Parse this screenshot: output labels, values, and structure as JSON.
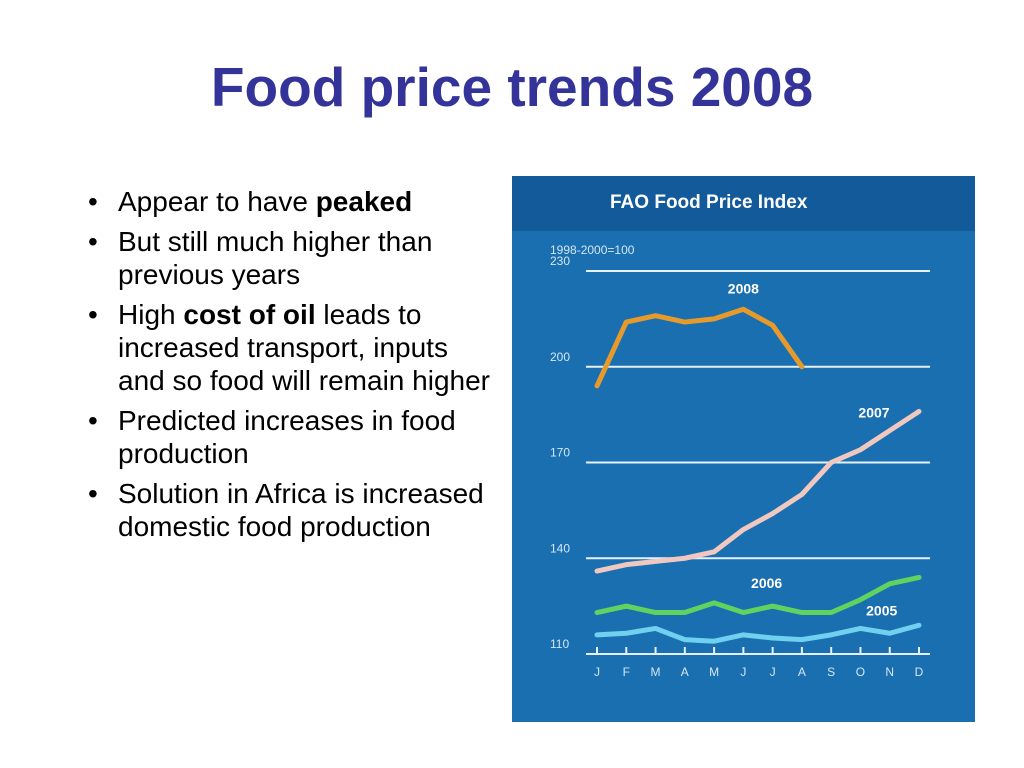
{
  "slide": {
    "title": "Food price trends 2008"
  },
  "bullets": [
    {
      "before": "Appear to have ",
      "bold": "peaked",
      "after": ""
    },
    {
      "before": "But still much higher than previous years",
      "bold": "",
      "after": ""
    },
    {
      "before": "High ",
      "bold": "cost of oil",
      "after": " leads to increased transport, inputs and so food will remain higher"
    },
    {
      "before": "Predicted increases in food production",
      "bold": "",
      "after": ""
    },
    {
      "before": "Solution in Africa is increased domestic food production",
      "bold": "",
      "after": ""
    }
  ],
  "chart_data": {
    "type": "line",
    "title": "FAO Food Price Index",
    "subtitle": "1998-2000=100",
    "categories": [
      "J",
      "F",
      "M",
      "A",
      "M",
      "J",
      "J",
      "A",
      "S",
      "O",
      "N",
      "D"
    ],
    "ylim": [
      110,
      230
    ],
    "yticks": [
      110,
      140,
      170,
      200,
      230
    ],
    "grid": true,
    "colors": {
      "background": "#1a6fb0",
      "header": "#125a99",
      "grid": "#e6f0fa",
      "text": "#ffffff",
      "axis_text": "#d6e6f5"
    },
    "series": [
      {
        "name": "2008",
        "color": "#e79a2c",
        "values": [
          194,
          214,
          216,
          214,
          215,
          218,
          213,
          200,
          null,
          null,
          null,
          null
        ]
      },
      {
        "name": "2007",
        "color": "#f0c8c0",
        "values": [
          136,
          138,
          139,
          140,
          142,
          149,
          154,
          160,
          170,
          174,
          180,
          186
        ]
      },
      {
        "name": "2006",
        "color": "#5fd35f",
        "values": [
          123,
          125,
          123,
          123,
          126,
          123,
          125,
          123,
          123,
          127,
          132,
          134
        ]
      },
      {
        "name": "2005",
        "color": "#6fd0f0",
        "values": [
          116,
          116.5,
          118,
          114.5,
          114,
          116,
          115,
          114.5,
          116,
          118,
          116.5,
          119
        ]
      }
    ]
  }
}
